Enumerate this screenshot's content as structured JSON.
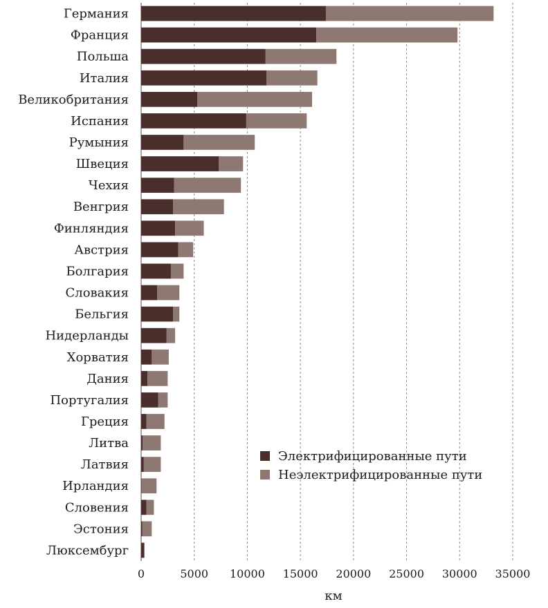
{
  "chart_data": {
    "type": "bar",
    "orientation": "horizontal",
    "stacked": true,
    "categories": [
      "Германия",
      "Франция",
      "Польша",
      "Италия",
      "Великобритания",
      "Испания",
      "Румыния",
      "Швеция",
      "Чехия",
      "Венгрия",
      "Финляндия",
      "Австрия",
      "Болгария",
      "Словакия",
      "Бельгия",
      "Нидерланды",
      "Хорватия",
      "Дания",
      "Португалия",
      "Греция",
      "Литва",
      "Латвия",
      "Ирландия",
      "Словения",
      "Эстония",
      "Люксембург"
    ],
    "series": [
      {
        "name": "Электрифицированные пути",
        "color": "#4a2e2c",
        "values": [
          17400,
          16500,
          11700,
          11800,
          5300,
          9900,
          4000,
          7300,
          3100,
          3000,
          3200,
          3500,
          2800,
          1500,
          3000,
          2400,
          1000,
          600,
          1600,
          500,
          150,
          250,
          50,
          500,
          100,
          300
        ]
      },
      {
        "name": "Неэлектрифицированные пути",
        "color": "#8e7872",
        "values": [
          15800,
          13300,
          6700,
          4800,
          10800,
          5700,
          6700,
          2300,
          6300,
          4800,
          2700,
          1400,
          1200,
          2100,
          600,
          800,
          1600,
          1900,
          900,
          1700,
          1700,
          1600,
          1400,
          700,
          900,
          0
        ]
      }
    ],
    "xlabel": "км",
    "xlim": [
      0,
      35000
    ],
    "xticks": [
      0,
      5000,
      10000,
      15000,
      20000,
      25000,
      30000,
      35000
    ],
    "xtick_labels": [
      "0",
      "5000",
      "10000",
      "15000",
      "20000",
      "25000",
      "30000",
      "35000"
    ],
    "grid": "vertical dashed",
    "legend_position": "bottom-right"
  }
}
